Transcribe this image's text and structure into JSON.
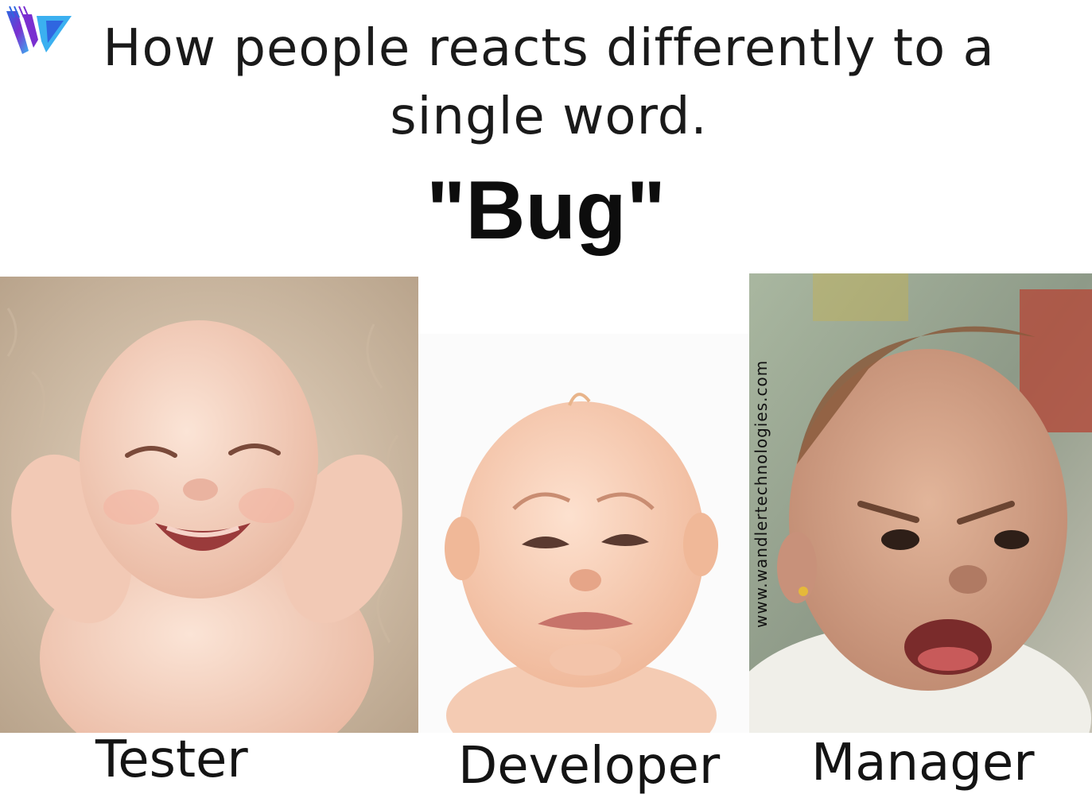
{
  "headline": {
    "line1": "How people reacts differently to a",
    "line2": "single word."
  },
  "keyword": "\"Bug\"",
  "watermark": "www.wandlertechnologies.com",
  "logo": {
    "icon": "w-logo-icon",
    "colors": [
      "#7a2fd0",
      "#2f66e0",
      "#3bb0f0"
    ]
  },
  "panels": [
    {
      "caption": "Tester",
      "expression": "laughing-baby"
    },
    {
      "caption": "Developer",
      "expression": "crying-baby"
    },
    {
      "caption": "Manager",
      "expression": "angry-baby"
    }
  ]
}
